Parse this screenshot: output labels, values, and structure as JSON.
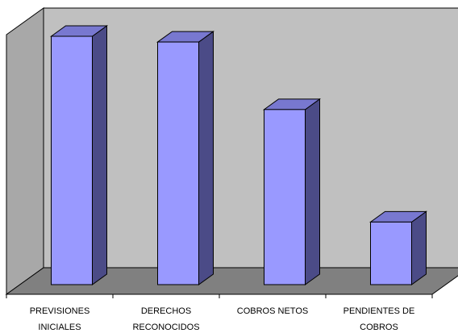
{
  "chart_data": {
    "type": "bar",
    "style": "3d-column",
    "categories": [
      [
        "PREVISIONES",
        "INICIALES"
      ],
      [
        "DERECHOS",
        "RECONOCIDOS"
      ],
      [
        "COBROS NETOS"
      ],
      [
        "PENDIENTES DE",
        "COBROS"
      ]
    ],
    "values": [
      100,
      97.7,
      70.5,
      25.2
    ],
    "ylim": [
      0,
      100
    ],
    "grid": false,
    "legend": "none",
    "colors": {
      "bar_front": "#9999ff",
      "bar_side": "#4b4b87",
      "bar_top": "#7878d0",
      "wall": "#c0c0c0",
      "side_wall": "#a8a8a8",
      "floor": "#808080"
    }
  }
}
